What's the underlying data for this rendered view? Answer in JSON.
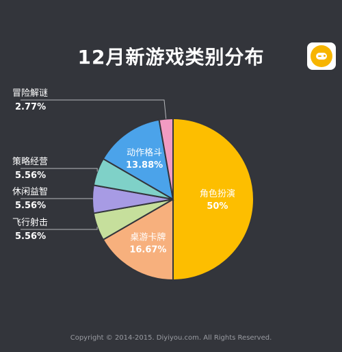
{
  "title": "12月新游戏类别分布",
  "footer": "Copyright © 2014-2015. Diyiyou.com. All Rights Reserved.",
  "logo_icon": "gamepad-icon",
  "chart_data": {
    "type": "pie",
    "title": "12月新游戏类别分布",
    "slices": [
      {
        "label": "角色扮演",
        "value": 50,
        "display": "50%",
        "color": "#fdbe00",
        "label_pos": "inside"
      },
      {
        "label": "桌游卡牌",
        "value": 16.67,
        "display": "16.67%",
        "color": "#f7b07d",
        "label_pos": "inside"
      },
      {
        "label": "飞行射击",
        "value": 5.56,
        "display": "5.56%",
        "color": "#c6df9c",
        "label_pos": "outside"
      },
      {
        "label": "休闲益智",
        "value": 5.56,
        "display": "5.56%",
        "color": "#a79be4",
        "label_pos": "outside"
      },
      {
        "label": "策略经营",
        "value": 5.56,
        "display": "5.56%",
        "color": "#7fd1c8",
        "label_pos": "outside"
      },
      {
        "label": "动作格斗",
        "value": 13.88,
        "display": "13.88%",
        "color": "#4ba3ea",
        "label_pos": "inside"
      },
      {
        "label": "冒险解谜",
        "value": 2.77,
        "display": "2.77%",
        "color": "#f29bc2",
        "label_pos": "outside"
      }
    ]
  }
}
